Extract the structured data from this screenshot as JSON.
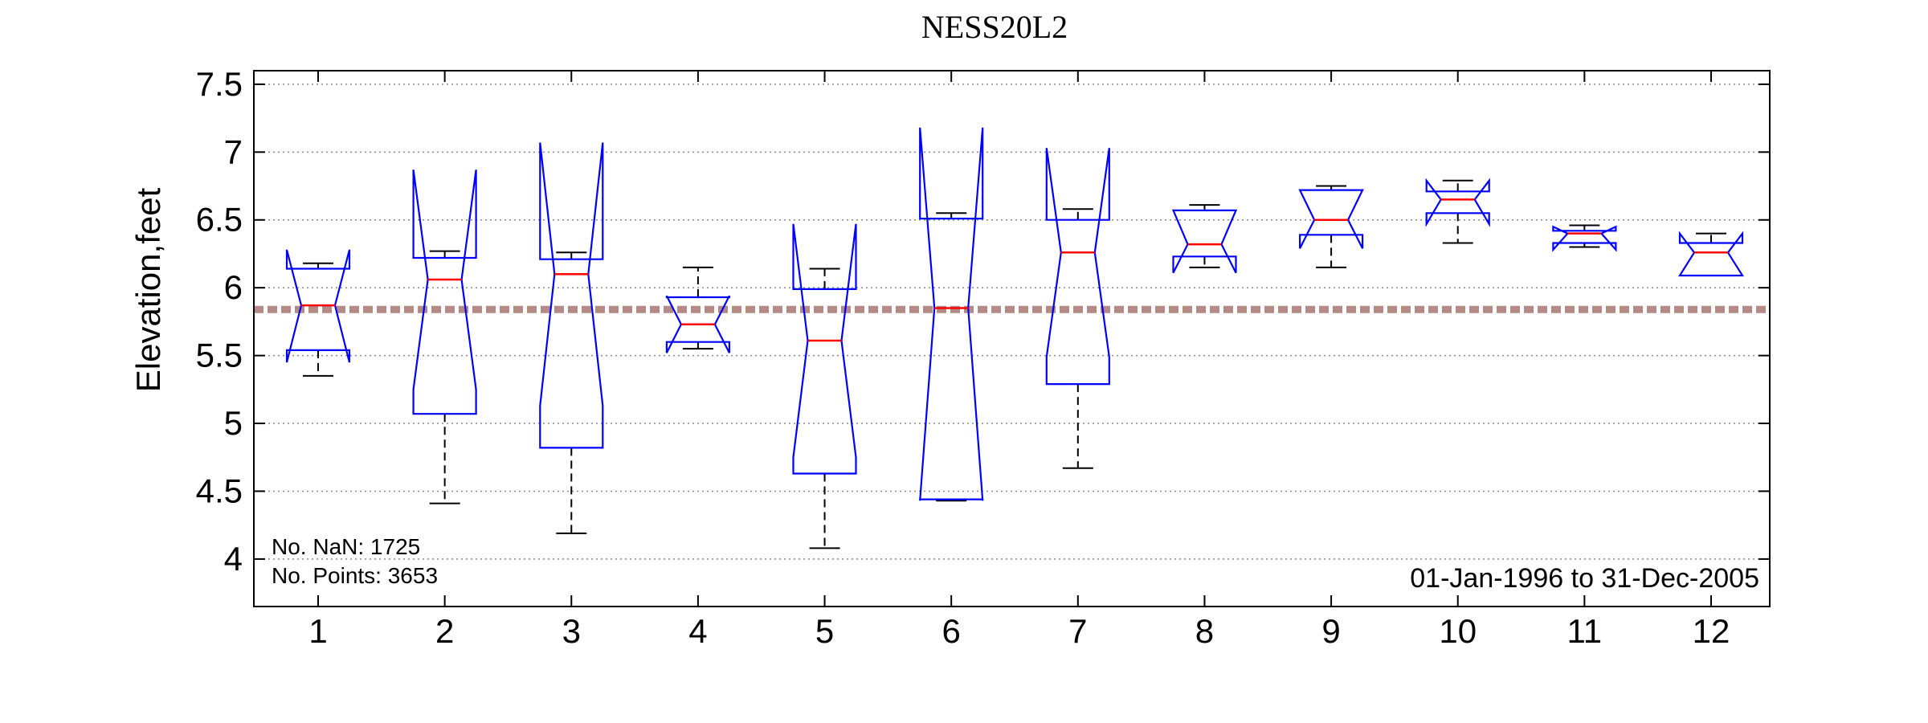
{
  "chart_data": {
    "type": "boxplot",
    "title": "NESS20L2",
    "ylabel": "Elevation,feet",
    "xlabel": "",
    "ylim": [
      3.65,
      7.6
    ],
    "yticks": [
      4,
      4.5,
      5,
      5.5,
      6,
      6.5,
      7,
      7.5
    ],
    "ytick_labels": [
      "4",
      "4.5",
      "5",
      "5.5",
      "6",
      "6.5",
      "7",
      "7.5"
    ],
    "categories": [
      "1",
      "2",
      "3",
      "4",
      "5",
      "6",
      "7",
      "8",
      "9",
      "10",
      "11",
      "12"
    ],
    "grid": "horizontal dotted",
    "notched": true,
    "reference_line": {
      "value": 5.84,
      "style": "dashed",
      "color": "#b48a84"
    },
    "colors": {
      "box": "#0000ff",
      "median": "#ff0000",
      "whisker": "#000000"
    },
    "boxes": [
      {
        "whisker_low": 5.35,
        "q1": 5.54,
        "median": 5.87,
        "q3": 6.14,
        "whisker_high": 6.18,
        "notch_low": 5.45,
        "notch_high": 6.28
      },
      {
        "whisker_low": 4.41,
        "q1": 5.07,
        "median": 6.06,
        "q3": 6.22,
        "whisker_high": 6.27,
        "notch_low": 5.25,
        "notch_high": 6.87
      },
      {
        "whisker_low": 4.19,
        "q1": 4.82,
        "median": 6.1,
        "q3": 6.21,
        "whisker_high": 6.26,
        "notch_low": 5.13,
        "notch_high": 7.07
      },
      {
        "whisker_low": 5.55,
        "q1": 5.6,
        "median": 5.73,
        "q3": 5.93,
        "whisker_high": 6.15,
        "notch_low": 5.52,
        "notch_high": 5.94
      },
      {
        "whisker_low": 4.08,
        "q1": 4.63,
        "median": 5.61,
        "q3": 5.99,
        "whisker_high": 6.14,
        "notch_low": 4.75,
        "notch_high": 6.47
      },
      {
        "whisker_low": 4.43,
        "q1": 4.44,
        "median": 5.85,
        "q3": 6.51,
        "whisker_high": 6.55,
        "notch_low": 4.43,
        "notch_high": 7.18
      },
      {
        "whisker_low": 4.67,
        "q1": 5.29,
        "median": 6.26,
        "q3": 6.5,
        "whisker_high": 6.58,
        "notch_low": 5.49,
        "notch_high": 7.03
      },
      {
        "whisker_low": 6.15,
        "q1": 6.23,
        "median": 6.32,
        "q3": 6.57,
        "whisker_high": 6.61,
        "notch_low": 6.11,
        "notch_high": 6.57
      },
      {
        "whisker_low": 6.15,
        "q1": 6.39,
        "median": 6.5,
        "q3": 6.72,
        "whisker_high": 6.75,
        "notch_low": 6.29,
        "notch_high": 6.72
      },
      {
        "whisker_low": 6.33,
        "q1": 6.55,
        "median": 6.65,
        "q3": 6.71,
        "whisker_high": 6.79,
        "notch_low": 6.47,
        "notch_high": 6.79
      },
      {
        "whisker_low": 6.3,
        "q1": 6.33,
        "median": 6.4,
        "q3": 6.42,
        "whisker_high": 6.46,
        "notch_low": 6.28,
        "notch_high": 6.45
      },
      {
        "whisker_low": 6.09,
        "q1": 6.09,
        "median": 6.26,
        "q3": 6.33,
        "whisker_high": 6.4,
        "notch_low": 6.09,
        "notch_high": 6.4
      }
    ]
  },
  "annotations": {
    "nan_count": "No. NaN: 1725",
    "points_count": "No. Points: 3653",
    "date_range": "01-Jan-1996 to 31-Dec-2005"
  }
}
